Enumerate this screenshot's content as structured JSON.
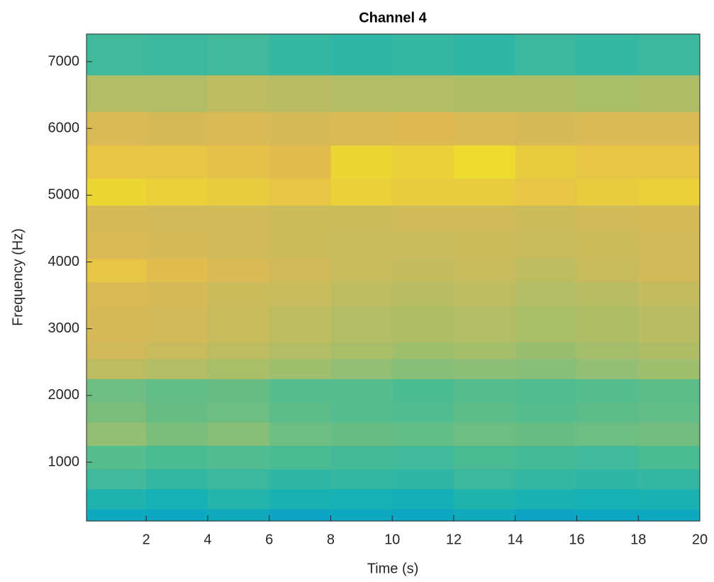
{
  "chart_data": {
    "type": "heatmap",
    "title": "Channel 4",
    "x_label": "Time (s)",
    "y_label": "Frequency (Hz)",
    "colormap": "parula",
    "clim": [
      0,
      1
    ],
    "x_edges": [
      0.06,
      2,
      4,
      6,
      8,
      10,
      12,
      14,
      16,
      18,
      20
    ],
    "y_edges": [
      119,
      300,
      600,
      900,
      1250,
      1600,
      1900,
      2250,
      2550,
      2800,
      3350,
      3700,
      4050,
      4450,
      4850,
      5250,
      5750,
      6250,
      6800,
      7414
    ],
    "values": [
      [
        0.45,
        0.44,
        0.46,
        0.43,
        0.45,
        0.44,
        0.46,
        0.43,
        0.44,
        0.45
      ],
      [
        0.52,
        0.5,
        0.53,
        0.51,
        0.5,
        0.49,
        0.52,
        0.51,
        0.5,
        0.51
      ],
      [
        0.58,
        0.56,
        0.57,
        0.55,
        0.56,
        0.55,
        0.57,
        0.56,
        0.55,
        0.56
      ],
      [
        0.62,
        0.6,
        0.61,
        0.6,
        0.59,
        0.58,
        0.6,
        0.59,
        0.58,
        0.6
      ],
      [
        0.72,
        0.68,
        0.7,
        0.66,
        0.65,
        0.64,
        0.66,
        0.65,
        0.66,
        0.67
      ],
      [
        0.68,
        0.65,
        0.66,
        0.63,
        0.62,
        0.61,
        0.63,
        0.62,
        0.63,
        0.64
      ],
      [
        0.66,
        0.64,
        0.65,
        0.62,
        0.62,
        0.6,
        0.62,
        0.61,
        0.62,
        0.63
      ],
      [
        0.8,
        0.78,
        0.76,
        0.74,
        0.72,
        0.7,
        0.71,
        0.7,
        0.72,
        0.74
      ],
      [
        0.84,
        0.82,
        0.8,
        0.78,
        0.76,
        0.74,
        0.75,
        0.73,
        0.75,
        0.77
      ],
      [
        0.85,
        0.84,
        0.82,
        0.8,
        0.78,
        0.77,
        0.78,
        0.76,
        0.77,
        0.79
      ],
      [
        0.86,
        0.85,
        0.83,
        0.82,
        0.8,
        0.79,
        0.8,
        0.78,
        0.79,
        0.81
      ],
      [
        0.9,
        0.88,
        0.86,
        0.84,
        0.82,
        0.81,
        0.82,
        0.8,
        0.82,
        0.84
      ],
      [
        0.86,
        0.85,
        0.84,
        0.83,
        0.82,
        0.82,
        0.83,
        0.82,
        0.83,
        0.84
      ],
      [
        0.85,
        0.84,
        0.84,
        0.83,
        0.83,
        0.84,
        0.84,
        0.83,
        0.84,
        0.85
      ],
      [
        0.93,
        0.92,
        0.91,
        0.9,
        0.92,
        0.91,
        0.91,
        0.9,
        0.91,
        0.92
      ],
      [
        0.9,
        0.9,
        0.89,
        0.88,
        0.93,
        0.92,
        0.94,
        0.91,
        0.9,
        0.9
      ],
      [
        0.86,
        0.85,
        0.86,
        0.85,
        0.86,
        0.87,
        0.86,
        0.85,
        0.86,
        0.86
      ],
      [
        0.78,
        0.78,
        0.8,
        0.79,
        0.78,
        0.78,
        0.77,
        0.77,
        0.76,
        0.77
      ],
      [
        0.58,
        0.57,
        0.58,
        0.56,
        0.55,
        0.56,
        0.55,
        0.57,
        0.56,
        0.57
      ]
    ],
    "xlim": [
      0.06,
      20
    ],
    "ylim": [
      119,
      7414
    ],
    "xticks": [
      2,
      4,
      6,
      8,
      10,
      12,
      14,
      16,
      18,
      20
    ],
    "yticks": [
      1000,
      2000,
      3000,
      4000,
      5000,
      6000,
      7000
    ]
  }
}
